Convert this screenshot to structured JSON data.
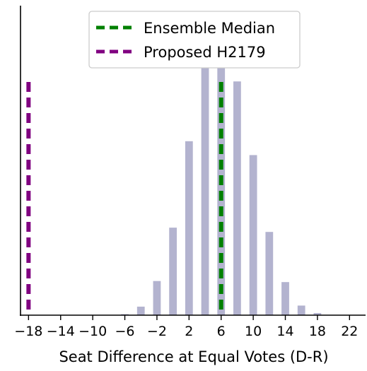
{
  "chart_data": {
    "type": "bar",
    "xlabel": "Seat Difference at Equal Votes (D-R)",
    "ylabel": "",
    "xlim": [
      -19,
      24
    ],
    "ylim": [
      0,
      0.29
    ],
    "xticks": [
      -18,
      -14,
      -10,
      -6,
      -2,
      2,
      6,
      10,
      14,
      18,
      22
    ],
    "xtick_labels": [
      "−18",
      "−14",
      "−10",
      "−6",
      "−2",
      "2",
      "6",
      "10",
      "14",
      "18",
      "22"
    ],
    "yticks_shown": false,
    "bars": {
      "x": [
        -6,
        -4,
        -2,
        0,
        2,
        4,
        6,
        8,
        10,
        12,
        14,
        16,
        18
      ],
      "values": [
        0.001,
        0.008,
        0.032,
        0.082,
        0.163,
        0.233,
        0.262,
        0.219,
        0.15,
        0.078,
        0.031,
        0.009,
        0.002
      ],
      "color": "#b3b3cf"
    },
    "vlines": [
      {
        "name": "Ensemble Median",
        "x": 6,
        "color": "#008000",
        "style": "dashed"
      },
      {
        "name": "Proposed H2179",
        "x": -18,
        "color": "#800080",
        "style": "dashed"
      }
    ],
    "legend": {
      "placement": "top-center",
      "entries": [
        "Ensemble Median",
        "Proposed H2179"
      ]
    },
    "spines": {
      "top": false,
      "right": false
    }
  }
}
